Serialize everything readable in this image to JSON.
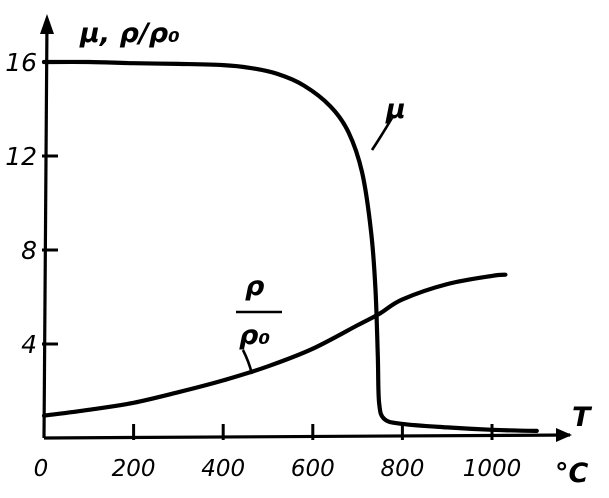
{
  "chart_data": {
    "type": "line",
    "y_axis_label": "μ, ρ/ρ₀",
    "x_axis_label": "T",
    "x_unit": "°C",
    "x_ticks": [
      "0",
      "200",
      "400",
      "600",
      "800",
      "1000"
    ],
    "y_ticks": [
      "4",
      "8",
      "12",
      "16"
    ],
    "xlim": [
      0,
      1100
    ],
    "ylim": [
      0,
      17.5
    ],
    "series": [
      {
        "name": "μ",
        "points": [
          [
            0,
            16.0
          ],
          [
            100,
            16.0
          ],
          [
            200,
            15.95
          ],
          [
            300,
            15.92
          ],
          [
            400,
            15.87
          ],
          [
            460,
            15.75
          ],
          [
            520,
            15.5
          ],
          [
            580,
            15.0
          ],
          [
            640,
            14.1
          ],
          [
            680,
            13.0
          ],
          [
            710,
            11.3
          ],
          [
            730,
            8.8
          ],
          [
            740,
            6.3
          ],
          [
            745,
            3.5
          ],
          [
            748,
            1.5
          ],
          [
            760,
            0.8
          ],
          [
            800,
            0.6
          ],
          [
            900,
            0.45
          ],
          [
            1000,
            0.35
          ],
          [
            1100,
            0.3
          ]
        ]
      },
      {
        "name": "ρ/ρ₀",
        "points": [
          [
            0,
            0.95
          ],
          [
            100,
            1.2
          ],
          [
            200,
            1.5
          ],
          [
            300,
            1.95
          ],
          [
            400,
            2.45
          ],
          [
            500,
            3.05
          ],
          [
            600,
            3.8
          ],
          [
            700,
            4.8
          ],
          [
            750,
            5.3
          ],
          [
            800,
            5.9
          ],
          [
            900,
            6.55
          ],
          [
            1000,
            6.9
          ],
          [
            1030,
            6.95
          ]
        ]
      }
    ],
    "annotations": [
      {
        "series": "μ",
        "text": "μ"
      },
      {
        "series": "ρ/ρ₀",
        "numerator": "ρ",
        "denominator": "ρ₀"
      }
    ]
  }
}
